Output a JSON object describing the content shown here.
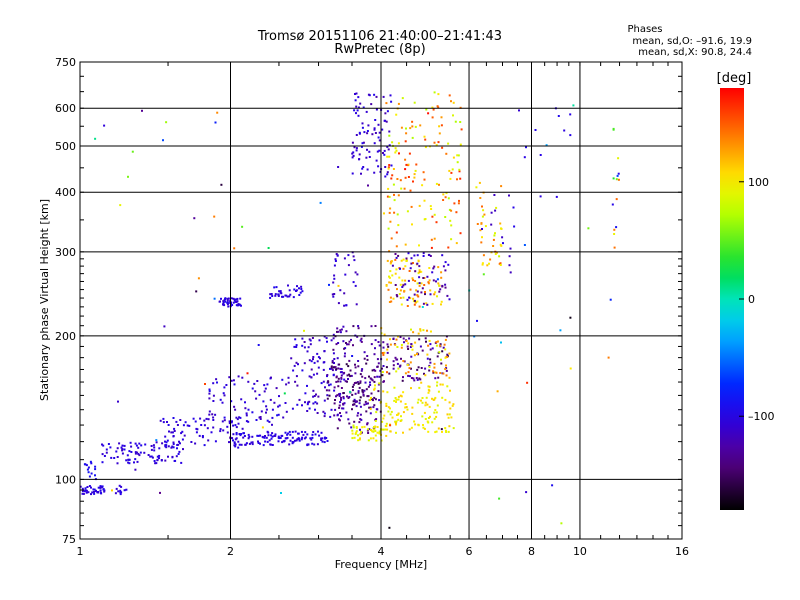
{
  "chart_data": {
    "type": "scatter",
    "title": "Tromsø 20151106 21:40:00–21:41:43",
    "subtitle": "RwPretec (8p)",
    "xlabel": "Frequency [MHz]",
    "ylabel": "Stationary phase Virtual Height [km]",
    "x_scale": "log",
    "y_scale": "log",
    "xlim": [
      1,
      16
    ],
    "ylim": [
      75,
      750
    ],
    "x_ticks": [
      1,
      2,
      4,
      6,
      8,
      10,
      16
    ],
    "x_tick_labels": [
      "1",
      "2",
      "4",
      "6",
      "8",
      "10",
      "16"
    ],
    "y_ticks": [
      75,
      100,
      200,
      300,
      400,
      500,
      600,
      750
    ],
    "y_tick_labels": [
      "75",
      "100",
      "200",
      "300",
      "400",
      "500",
      "600",
      "750"
    ],
    "grid": true,
    "stats": {
      "heading": "Phases",
      "line_o": "mean, sd,O: –91.6, 19.9",
      "line_x": "mean, sd,X:  90.8, 24.4"
    },
    "colorbar": {
      "label": "[deg]",
      "range": [
        -180,
        180
      ],
      "ticks": [
        100,
        0,
        -100
      ],
      "tick_labels": [
        "100",
        "0",
        "–100"
      ]
    },
    "clusters": [
      {
        "f": [
          1.0,
          1.12
        ],
        "h": [
          93,
          97
        ],
        "phase": [
          -110,
          -95
        ],
        "n": 40
      },
      {
        "f": [
          1.18,
          1.24
        ],
        "h": [
          93,
          97
        ],
        "phase": [
          -110,
          -95
        ],
        "n": 12
      },
      {
        "f": [
          1.0,
          1.1
        ],
        "h": [
          100,
          110
        ],
        "phase": [
          -100,
          -85
        ],
        "n": 14
      },
      {
        "f": [
          1.1,
          1.6
        ],
        "h": [
          108,
          120
        ],
        "phase": [
          -115,
          -95
        ],
        "n": 90
      },
      {
        "f": [
          1.45,
          2.2
        ],
        "h": [
          115,
          135
        ],
        "phase": [
          -115,
          -95
        ],
        "n": 90
      },
      {
        "f": [
          1.8,
          2.6
        ],
        "h": [
          130,
          165
        ],
        "phase": [
          -120,
          -95
        ],
        "n": 80
      },
      {
        "f": [
          2.0,
          3.2
        ],
        "h": [
          118,
          126
        ],
        "phase": [
          -110,
          -95
        ],
        "n": 120
      },
      {
        "f": [
          1.9,
          2.1
        ],
        "h": [
          230,
          240
        ],
        "phase": [
          -110,
          -95
        ],
        "n": 45
      },
      {
        "f": [
          2.4,
          2.8
        ],
        "h": [
          240,
          255
        ],
        "phase": [
          -110,
          -95
        ],
        "n": 35
      },
      {
        "f": [
          2.6,
          3.4
        ],
        "h": [
          135,
          200
        ],
        "phase": [
          -125,
          -95
        ],
        "n": 110
      },
      {
        "f": [
          3.2,
          4.0
        ],
        "h": [
          125,
          210
        ],
        "phase": [
          -150,
          -110
        ],
        "n": 160
      },
      {
        "f": [
          3.1,
          3.9
        ],
        "h": [
          145,
          175
        ],
        "phase": [
          -160,
          -130
        ],
        "n": 70
      },
      {
        "f": [
          3.8,
          5.6
        ],
        "h": [
          125,
          160
        ],
        "phase": [
          85,
          115
        ],
        "n": 140
      },
      {
        "f": [
          3.5,
          4.1
        ],
        "h": [
          120,
          130
        ],
        "phase": [
          80,
          110
        ],
        "n": 40
      },
      {
        "f": [
          4.0,
          5.5
        ],
        "h": [
          160,
          200
        ],
        "phase": [
          -160,
          -110
        ],
        "n": 90
      },
      {
        "f": [
          4.0,
          5.5
        ],
        "h": [
          165,
          210
        ],
        "phase": [
          80,
          150
        ],
        "n": 70
      },
      {
        "f": [
          3.5,
          4.2
        ],
        "h": [
          430,
          650
        ],
        "phase": [
          -125,
          -95
        ],
        "n": 90
      },
      {
        "f": [
          4.1,
          5.8
        ],
        "h": [
          300,
          650
        ],
        "phase": [
          70,
          170
        ],
        "n": 150
      },
      {
        "f": [
          4.1,
          5.3
        ],
        "h": [
          230,
          290
        ],
        "phase": [
          90,
          150
        ],
        "n": 90
      },
      {
        "f": [
          4.2,
          5.5
        ],
        "h": [
          230,
          300
        ],
        "phase": [
          -150,
          -100
        ],
        "n": 60
      },
      {
        "f": [
          3.2,
          3.6
        ],
        "h": [
          230,
          300
        ],
        "phase": [
          -120,
          -100
        ],
        "n": 30
      },
      {
        "f": [
          6.2,
          7.0
        ],
        "h": [
          280,
          420
        ],
        "phase": [
          80,
          150
        ],
        "n": 40
      },
      {
        "f": [
          6.3,
          7.4
        ],
        "h": [
          270,
          400
        ],
        "phase": [
          -120,
          -95
        ],
        "n": 14
      },
      {
        "f": [
          7.5,
          9.8
        ],
        "h": [
          380,
          620
        ],
        "phase": [
          -110,
          -95
        ],
        "n": 12
      },
      {
        "f": [
          11.5,
          12.0
        ],
        "h": [
          300,
          620
        ],
        "phase": [
          -110,
          150
        ],
        "n": 14
      },
      {
        "f": [
          1.0,
          12.0
        ],
        "h": [
          78,
          650
        ],
        "phase": [
          -180,
          180
        ],
        "n": 70
      }
    ]
  }
}
